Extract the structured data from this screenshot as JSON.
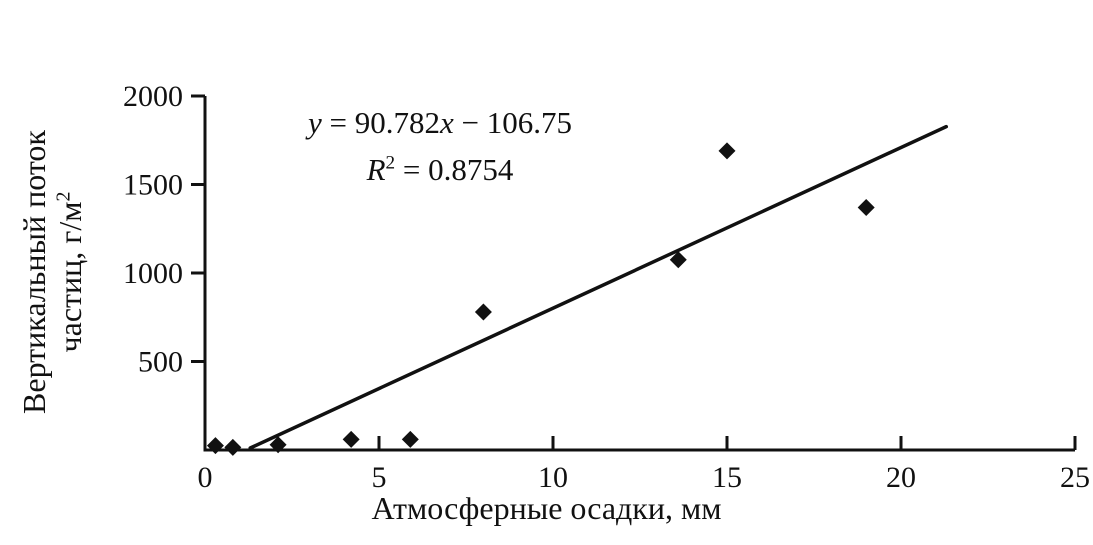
{
  "chart_data": {
    "type": "scatter",
    "title": "",
    "xlabel": "Атмосферные осадки, мм",
    "ylabel_line1": "Вертикальный поток",
    "ylabel_line2": "частиц, г/м",
    "ylabel_superscript": "2",
    "equation": {
      "y_var": "y",
      "mid": " = 90.782",
      "x_var": "x",
      "tail": " − 106.75",
      "r_var": "R",
      "r_sup": "2",
      "r_tail": " = 0.8754"
    },
    "xlim": [
      0,
      25
    ],
    "ylim": [
      0,
      2000
    ],
    "xticks": [
      0,
      5,
      10,
      15,
      20,
      25
    ],
    "yticks": [
      500,
      1000,
      1500,
      2000
    ],
    "points": [
      {
        "x": 0.3,
        "y": 25
      },
      {
        "x": 0.8,
        "y": 15
      },
      {
        "x": 2.1,
        "y": 30
      },
      {
        "x": 4.2,
        "y": 60
      },
      {
        "x": 5.9,
        "y": 60
      },
      {
        "x": 8.0,
        "y": 780
      },
      {
        "x": 13.6,
        "y": 1075
      },
      {
        "x": 15.0,
        "y": 1690
      },
      {
        "x": 19.0,
        "y": 1370
      }
    ],
    "trendline": {
      "slope": 90.782,
      "intercept": -106.75,
      "x_start": 1.3,
      "x_end": 21.3
    },
    "marker": "diamond",
    "line_color": "#111111",
    "grid": false,
    "legend": false
  }
}
